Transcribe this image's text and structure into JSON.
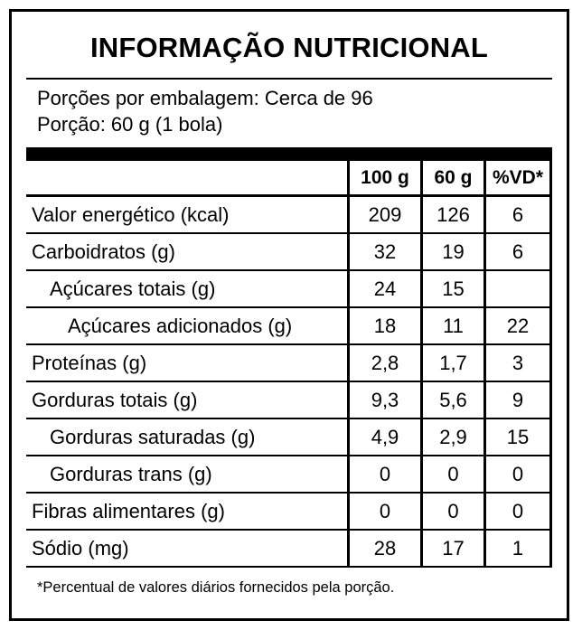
{
  "title": "INFORMAÇÃO NUTRICIONAL",
  "servings": {
    "per_package": "Porções por embalagem: Cerca de 96",
    "serving_size": "Porção: 60 g (1 bola)"
  },
  "table": {
    "headers": [
      "100 g",
      "60 g",
      "%VD*"
    ],
    "rows": [
      {
        "name": "Valor energético (kcal)",
        "per100": "209",
        "per60": "126",
        "vd": "6",
        "indent": 0
      },
      {
        "name": "Carboidratos (g)",
        "per100": "32",
        "per60": "19",
        "vd": "6",
        "indent": 0
      },
      {
        "name": "Açúcares totais (g)",
        "per100": "24",
        "per60": "15",
        "vd": "",
        "indent": 1
      },
      {
        "name": "Açúcares adicionados (g)",
        "per100": "18",
        "per60": "11",
        "vd": "22",
        "indent": 2
      },
      {
        "name": "Proteínas (g)",
        "per100": "2,8",
        "per60": "1,7",
        "vd": "3",
        "indent": 0
      },
      {
        "name": "Gorduras totais (g)",
        "per100": "9,3",
        "per60": "5,6",
        "vd": "9",
        "indent": 0
      },
      {
        "name": "Gorduras saturadas (g)",
        "per100": "4,9",
        "per60": "2,9",
        "vd": "15",
        "indent": 1
      },
      {
        "name": "Gorduras trans (g)",
        "per100": "0",
        "per60": "0",
        "vd": "0",
        "indent": 1
      },
      {
        "name": "Fibras alimentares (g)",
        "per100": "0",
        "per60": "0",
        "vd": "0",
        "indent": 0
      },
      {
        "name": "Sódio (mg)",
        "per100": "28",
        "per60": "17",
        "vd": "1",
        "indent": 0
      }
    ]
  },
  "footnote": "*Percentual de valores diários fornecidos pela porção."
}
